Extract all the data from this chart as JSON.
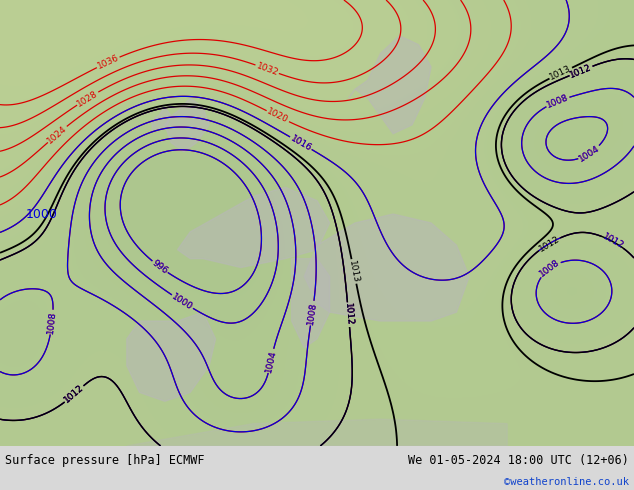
{
  "title_left": "Surface pressure [hPa] ECMWF",
  "title_right": "We 01-05-2024 18:00 UTC (12+06)",
  "credit": "©weatheronline.co.uk",
  "map_bg_color": "#a8c890",
  "land_color": "#b0c8a0",
  "sea_color": "#a0b888",
  "gray_land_color": "#b8b8b8",
  "bottom_bar_color": "#d8d8d8",
  "text_color_black": "#000000",
  "text_color_blue": "#0000dd",
  "text_color_red": "#dd0000",
  "credit_color": "#1144cc",
  "fig_width": 6.34,
  "fig_height": 4.9,
  "font_size_labels": 8.5,
  "font_size_credit": 7.5,
  "isobar_red_lw": 0.9,
  "isobar_blue_lw": 0.9,
  "isobar_black_lw": 1.3,
  "label_fontsize": 6.5
}
